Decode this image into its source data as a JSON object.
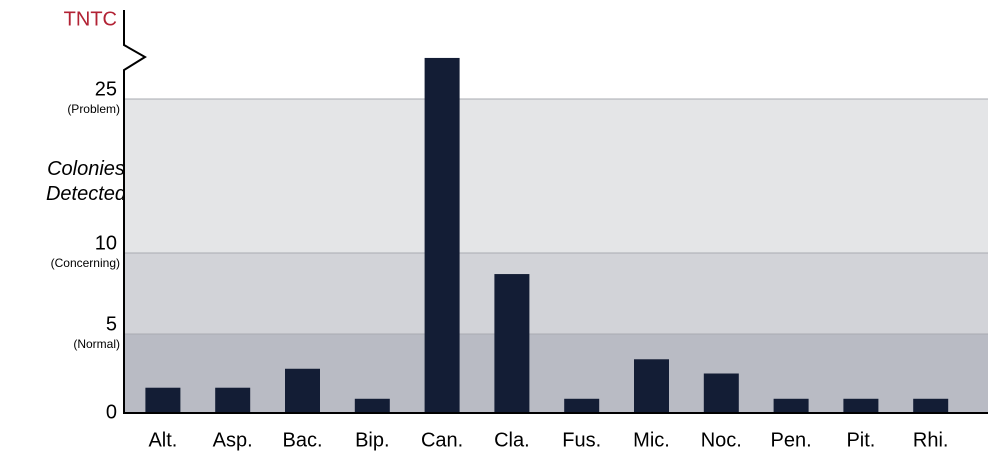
{
  "chart_data": {
    "type": "bar",
    "y_label": "Colonies Detected",
    "break_label": "TNTC",
    "categories": [
      "Alt.",
      "Asp.",
      "Bac.",
      "Bip.",
      "Can.",
      "Cla.",
      "Fus.",
      "Mic.",
      "Noc.",
      "Pen.",
      "Pit.",
      "Rhi."
    ],
    "values": [
      1.6,
      1.6,
      2.8,
      0.9,
      29,
      8.7,
      0.9,
      3.4,
      2.5,
      0.9,
      0.9,
      0.9
    ],
    "color": "#131d35",
    "yticks": [
      0,
      5,
      10,
      25
    ],
    "zone_labels": [
      "(Normal)",
      "(Concerning)",
      "(Problem)"
    ],
    "zone_colors": [
      "#b9bbc4",
      "#d2d3d8",
      "#e4e5e7"
    ]
  }
}
